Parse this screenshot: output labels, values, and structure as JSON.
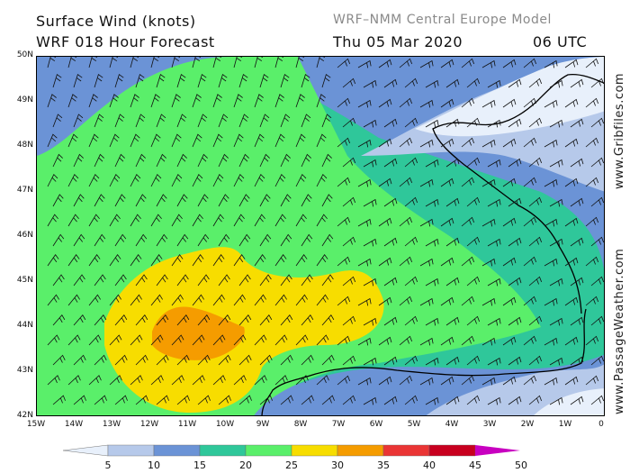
{
  "header": {
    "title_line1": "Surface Wind (knots)",
    "title_line2": "WRF 018 Hour Forecast",
    "model": "WRF–NMM Central Europe Model",
    "date": "Thu 05 Mar 2020",
    "time": "06 UTC"
  },
  "credits": {
    "right_top": "www.Gribfiles.com",
    "right_bottom": "www.PassageWeather.com"
  },
  "axes": {
    "latitudes": [
      "50N",
      "49N",
      "48N",
      "47N",
      "46N",
      "45N",
      "44N",
      "43N",
      "42N"
    ],
    "longitudes": [
      "15W",
      "14W",
      "13W",
      "12W",
      "11W",
      "10W",
      "9W",
      "8W",
      "7W",
      "6W",
      "5W",
      "4W",
      "3W",
      "2W",
      "1W",
      "0"
    ]
  },
  "legend": {
    "colors": [
      "#e8f0fb",
      "#b6c9ea",
      "#6b93d6",
      "#2fc79a",
      "#5aef6a",
      "#f7dd00",
      "#f59c00",
      "#ea3535",
      "#c8001f",
      "#c800c0"
    ],
    "labels": [
      "5",
      "10",
      "15",
      "20",
      "25",
      "30",
      "35",
      "40",
      "45",
      "50"
    ]
  },
  "colors": {
    "calm": "#6b93d6",
    "moderate": "#2fc79a",
    "fresh": "#5aef6a",
    "strong": "#f7dd00",
    "gale": "#f59c00"
  }
}
